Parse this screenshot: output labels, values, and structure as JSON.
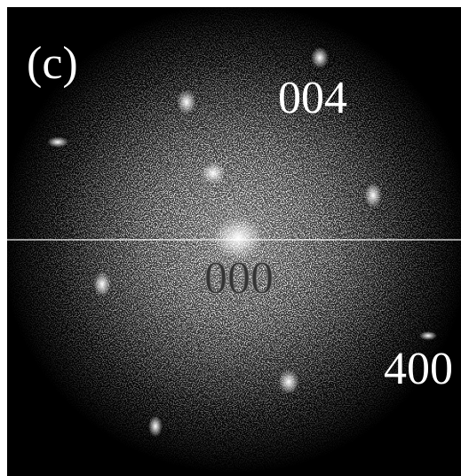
{
  "image": {
    "panel_label": "(c)",
    "spots": {
      "top": "004",
      "center": "000",
      "right": "400"
    }
  }
}
